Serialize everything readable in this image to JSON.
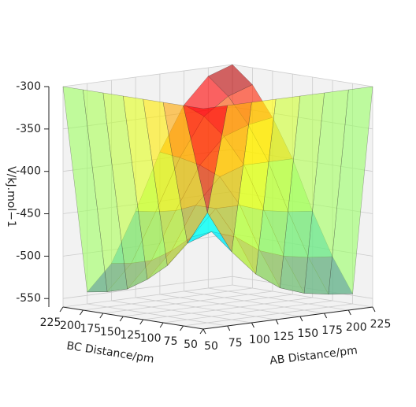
{
  "chart_data": {
    "type": "surface3d",
    "xlabel": "AB Distance/pm",
    "ylabel": "BC Distance/pm",
    "zlabel": "V/kJ.mol−1",
    "colormap": "jet",
    "x": [
      50,
      75,
      100,
      125,
      150,
      175,
      200,
      225
    ],
    "y": [
      50,
      75,
      100,
      125,
      150,
      175,
      200,
      225
    ],
    "z": [
      [
        -300,
        -300,
        -300,
        -300,
        -300,
        -300,
        -300,
        -300
      ],
      [
        -300,
        -430,
        -480,
        -510,
        -530,
        -540,
        -545,
        -548
      ],
      [
        -300,
        -470,
        -460,
        -470,
        -490,
        -500,
        -505,
        -508
      ],
      [
        -300,
        -500,
        -470,
        -440,
        -440,
        -450,
        -455,
        -458
      ],
      [
        -300,
        -520,
        -490,
        -440,
        -410,
        -400,
        -400,
        -400
      ],
      [
        -300,
        -535,
        -505,
        -450,
        -400,
        -370,
        -360,
        -355
      ],
      [
        -300,
        -542,
        -512,
        -455,
        -395,
        -350,
        -330,
        -320
      ],
      [
        -300,
        -546,
        -516,
        -458,
        -392,
        -340,
        -310,
        -300
      ]
    ],
    "xlim": [
      50,
      225
    ],
    "ylim": [
      50,
      225
    ],
    "zlim": [
      -560,
      -300
    ],
    "xticks": [
      50,
      75,
      100,
      125,
      150,
      175,
      200,
      225
    ],
    "yticks": [
      50,
      75,
      100,
      125,
      150,
      175,
      200,
      225
    ],
    "zticks": [
      -550,
      -500,
      -450,
      -400,
      -350,
      -300
    ],
    "grid": true
  }
}
